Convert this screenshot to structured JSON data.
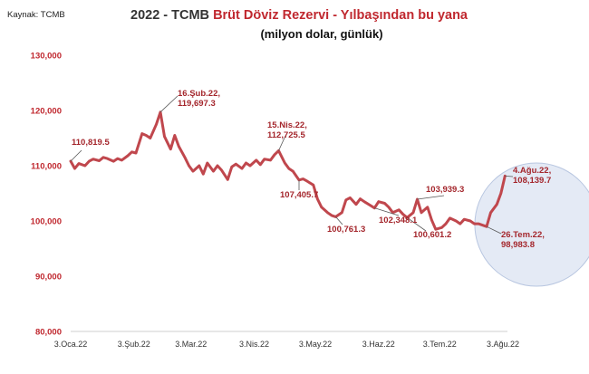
{
  "source": "Kaynak: TCMB",
  "title_prefix": "2022 - TCMB ",
  "title_highlight": "Brüt Döviz Rezervi - Yılbaşından bu yana",
  "subtitle": "(milyon dolar, günlük)",
  "colors": {
    "line": "#c0474d",
    "title_red": "#c0282f",
    "annotation": "#a4262c",
    "highlight_circle": "#c9d6ec"
  },
  "chart_data": {
    "type": "line",
    "series": [
      {
        "values": [
          [
            "2022-01-03",
            110819.5
          ],
          [
            "2022-01-05",
            109500
          ],
          [
            "2022-01-07",
            110400
          ],
          [
            "2022-01-10",
            110000
          ],
          [
            "2022-01-12",
            110800
          ],
          [
            "2022-01-14",
            111200
          ],
          [
            "2022-01-17",
            110900
          ],
          [
            "2022-01-19",
            111500
          ],
          [
            "2022-01-21",
            111300
          ],
          [
            "2022-01-24",
            110800
          ],
          [
            "2022-01-26",
            111300
          ],
          [
            "2022-01-28",
            111000
          ],
          [
            "2022-01-31",
            111800
          ],
          [
            "2022-02-02",
            112500
          ],
          [
            "2022-02-04",
            112300
          ],
          [
            "2022-02-07",
            115800
          ],
          [
            "2022-02-09",
            115500
          ],
          [
            "2022-02-11",
            115000
          ],
          [
            "2022-02-14",
            117500
          ],
          [
            "2022-02-16",
            119697.3
          ],
          [
            "2022-02-18",
            115300
          ],
          [
            "2022-02-21",
            113000
          ],
          [
            "2022-02-23",
            115500
          ],
          [
            "2022-02-25",
            113500
          ],
          [
            "2022-02-28",
            111500
          ],
          [
            "2022-03-02",
            110000
          ],
          [
            "2022-03-04",
            109000
          ],
          [
            "2022-03-07",
            110000
          ],
          [
            "2022-03-09",
            108500
          ],
          [
            "2022-03-11",
            110500
          ],
          [
            "2022-03-14",
            109000
          ],
          [
            "2022-03-16",
            110000
          ],
          [
            "2022-03-18",
            109200
          ],
          [
            "2022-03-21",
            107500
          ],
          [
            "2022-03-23",
            109800
          ],
          [
            "2022-03-25",
            110300
          ],
          [
            "2022-03-28",
            109500
          ],
          [
            "2022-03-30",
            110500
          ],
          [
            "2022-04-01",
            110000
          ],
          [
            "2022-04-04",
            111000
          ],
          [
            "2022-04-06",
            110200
          ],
          [
            "2022-04-08",
            111200
          ],
          [
            "2022-04-11",
            111000
          ],
          [
            "2022-04-13",
            112000
          ],
          [
            "2022-04-15",
            112725.5
          ],
          [
            "2022-04-18",
            110500
          ],
          [
            "2022-04-20",
            109500
          ],
          [
            "2022-04-22",
            109000
          ],
          [
            "2022-04-25",
            107405.7
          ],
          [
            "2022-04-27",
            107600
          ],
          [
            "2022-04-29",
            107200
          ],
          [
            "2022-05-02",
            106500
          ],
          [
            "2022-05-04",
            104000
          ],
          [
            "2022-05-06",
            102500
          ],
          [
            "2022-05-09",
            101500
          ],
          [
            "2022-05-11",
            101000
          ],
          [
            "2022-05-13",
            100761.3
          ],
          [
            "2022-05-16",
            101500
          ],
          [
            "2022-05-18",
            103800
          ],
          [
            "2022-05-20",
            104200
          ],
          [
            "2022-05-23",
            103000
          ],
          [
            "2022-05-25",
            104000
          ],
          [
            "2022-05-27",
            103500
          ],
          [
            "2022-05-30",
            102800
          ],
          [
            "2022-06-01",
            102348.1
          ],
          [
            "2022-06-03",
            103500
          ],
          [
            "2022-06-06",
            103200
          ],
          [
            "2022-06-08",
            102500
          ],
          [
            "2022-06-10",
            101500
          ],
          [
            "2022-06-13",
            102000
          ],
          [
            "2022-06-15",
            101200
          ],
          [
            "2022-06-17",
            100601.2
          ],
          [
            "2022-06-20",
            101500
          ],
          [
            "2022-06-22",
            103939.3
          ],
          [
            "2022-06-24",
            101500
          ],
          [
            "2022-06-27",
            102500
          ],
          [
            "2022-06-29",
            100200
          ],
          [
            "2022-07-01",
            98500
          ],
          [
            "2022-07-04",
            98800
          ],
          [
            "2022-07-06",
            99500
          ],
          [
            "2022-07-08",
            100500
          ],
          [
            "2022-07-11",
            100000
          ],
          [
            "2022-07-13",
            99500
          ],
          [
            "2022-07-15",
            100300
          ],
          [
            "2022-07-18",
            100000
          ],
          [
            "2022-07-20",
            99500
          ],
          [
            "2022-07-22",
            99500
          ],
          [
            "2022-07-26",
            98983.8
          ],
          [
            "2022-07-28",
            101500
          ],
          [
            "2022-07-31",
            103000
          ],
          [
            "2022-08-02",
            105000
          ],
          [
            "2022-08-04",
            108139.7
          ]
        ]
      }
    ],
    "y_ticks": [
      "130,000",
      "120,000",
      "110,000",
      "100,000",
      "90,000",
      "80,000"
    ],
    "x_ticks": [
      "3.Oca.22",
      "3.Şub.22",
      "3.Mar.22",
      "3.Nis.22",
      "3.May.22",
      "3.Haz.22",
      "3.Tem.22",
      "3.Ağu.22"
    ],
    "ylim": [
      80000,
      130000
    ],
    "grid": false,
    "annotations": [
      {
        "lines": [
          "110,819.5"
        ],
        "at": "2022-01-03"
      },
      {
        "lines": [
          "16.Şub.22,",
          "119,697.3"
        ],
        "at": "2022-02-16"
      },
      {
        "lines": [
          "15.Nis.22,",
          "112,725.5"
        ],
        "at": "2022-04-15"
      },
      {
        "lines": [
          "107,405.7"
        ],
        "at": "2022-04-25"
      },
      {
        "lines": [
          "100,761.3"
        ],
        "at": "2022-05-13"
      },
      {
        "lines": [
          "102,348.1"
        ],
        "at": "2022-06-01"
      },
      {
        "lines": [
          "103,939.3"
        ],
        "at": "2022-06-22"
      },
      {
        "lines": [
          "100,601.2"
        ],
        "at": "2022-06-17"
      },
      {
        "lines": [
          "4.Ağu.22,",
          "108,139.7"
        ],
        "at": "2022-08-04"
      },
      {
        "lines": [
          "26.Tem.22,",
          "98,983.8"
        ],
        "at": "2022-07-26"
      }
    ]
  }
}
